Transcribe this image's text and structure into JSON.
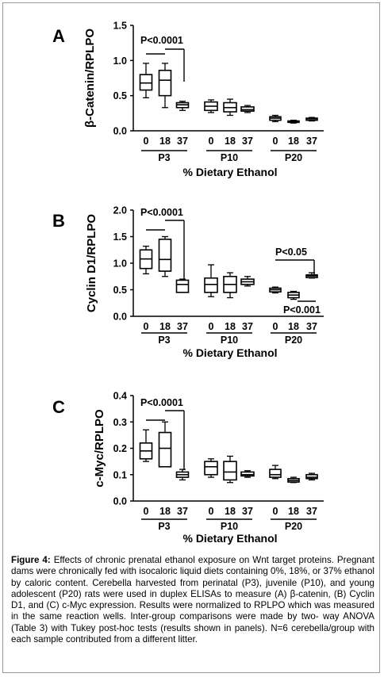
{
  "chart_data": [
    {
      "type": "box",
      "panel_label": "A",
      "ylabel": "β-Catenin/RPLPO",
      "ylim": [
        0,
        1.5
      ],
      "yticks": [
        "0.0",
        "0.5",
        "1.0",
        "1.5"
      ],
      "xlabel": "% Dietary Ethanol",
      "groups": [
        {
          "name": "P3",
          "doses": [
            "0",
            "18",
            "37"
          ],
          "boxes": [
            {
              "min": 0.47,
              "q1": 0.58,
              "median": 0.68,
              "q3": 0.8,
              "max": 0.96
            },
            {
              "min": 0.33,
              "q1": 0.5,
              "median": 0.72,
              "q3": 0.86,
              "max": 0.96
            },
            {
              "min": 0.29,
              "q1": 0.33,
              "median": 0.37,
              "q3": 0.4,
              "max": 0.42
            }
          ]
        },
        {
          "name": "P10",
          "doses": [
            "0",
            "18",
            "37"
          ],
          "boxes": [
            {
              "min": 0.26,
              "q1": 0.29,
              "median": 0.35,
              "q3": 0.41,
              "max": 0.44
            },
            {
              "min": 0.22,
              "q1": 0.27,
              "median": 0.33,
              "q3": 0.4,
              "max": 0.45
            },
            {
              "min": 0.26,
              "q1": 0.28,
              "median": 0.3,
              "q3": 0.34,
              "max": 0.36
            }
          ]
        },
        {
          "name": "P20",
          "doses": [
            "0",
            "18",
            "37"
          ],
          "boxes": [
            {
              "min": 0.13,
              "q1": 0.15,
              "median": 0.18,
              "q3": 0.2,
              "max": 0.22
            },
            {
              "min": 0.11,
              "q1": 0.12,
              "median": 0.13,
              "q3": 0.14,
              "max": 0.15
            },
            {
              "min": 0.14,
              "q1": 0.15,
              "median": 0.17,
              "q3": 0.18,
              "max": 0.19
            }
          ]
        }
      ],
      "annotations": [
        {
          "text": "P<0.0001",
          "compare": [
            "P3 0",
            "P3 18",
            "P3 37"
          ]
        }
      ]
    },
    {
      "type": "box",
      "panel_label": "B",
      "ylabel": "Cyclin D1/RPLPO",
      "ylim": [
        0,
        2.0
      ],
      "yticks": [
        "0.0",
        "0.5",
        "1.0",
        "1.5",
        "2.0"
      ],
      "xlabel": "% Dietary Ethanol",
      "groups": [
        {
          "name": "P3",
          "doses": [
            "0",
            "18",
            "37"
          ],
          "boxes": [
            {
              "min": 0.8,
              "q1": 0.9,
              "median": 1.08,
              "q3": 1.25,
              "max": 1.32
            },
            {
              "min": 0.75,
              "q1": 0.85,
              "median": 1.07,
              "q3": 1.45,
              "max": 1.5
            },
            {
              "min": 0.45,
              "q1": 0.45,
              "median": 0.6,
              "q3": 0.68,
              "max": 0.7
            }
          ]
        },
        {
          "name": "P10",
          "doses": [
            "0",
            "18",
            "37"
          ],
          "boxes": [
            {
              "min": 0.37,
              "q1": 0.45,
              "median": 0.6,
              "q3": 0.72,
              "max": 0.97
            },
            {
              "min": 0.35,
              "q1": 0.45,
              "median": 0.6,
              "q3": 0.75,
              "max": 0.82
            },
            {
              "min": 0.57,
              "q1": 0.6,
              "median": 0.65,
              "q3": 0.7,
              "max": 0.75
            }
          ]
        },
        {
          "name": "P20",
          "doses": [
            "0",
            "18",
            "37"
          ],
          "boxes": [
            {
              "min": 0.44,
              "q1": 0.46,
              "median": 0.5,
              "q3": 0.53,
              "max": 0.55
            },
            {
              "min": 0.32,
              "q1": 0.35,
              "median": 0.4,
              "q3": 0.45,
              "max": 0.47
            },
            {
              "min": 0.72,
              "q1": 0.73,
              "median": 0.76,
              "q3": 0.78,
              "max": 0.82
            }
          ]
        }
      ],
      "annotations": [
        {
          "text": "P<0.0001",
          "compare": [
            "P3 0",
            "P3 18",
            "P3 37"
          ]
        },
        {
          "text": "P<0.05",
          "compare": [
            "P20 0",
            "P20 37"
          ]
        },
        {
          "text": "P<0.001",
          "compare": [
            "P20 18",
            "P20 37"
          ]
        }
      ]
    },
    {
      "type": "box",
      "panel_label": "C",
      "ylabel": "c-Myc/RPLPO",
      "ylim": [
        0,
        0.4
      ],
      "yticks": [
        "0.0",
        "0.1",
        "0.2",
        "0.3",
        "0.4"
      ],
      "xlabel": "% Dietary Ethanol",
      "groups": [
        {
          "name": "P3",
          "doses": [
            "0",
            "18",
            "37"
          ],
          "boxes": [
            {
              "min": 0.15,
              "q1": 0.16,
              "median": 0.19,
              "q3": 0.22,
              "max": 0.27
            },
            {
              "min": 0.13,
              "q1": 0.13,
              "median": 0.2,
              "q3": 0.26,
              "max": 0.3
            },
            {
              "min": 0.08,
              "q1": 0.09,
              "median": 0.1,
              "q3": 0.11,
              "max": 0.12
            }
          ]
        },
        {
          "name": "P10",
          "doses": [
            "0",
            "18",
            "37"
          ],
          "boxes": [
            {
              "min": 0.09,
              "q1": 0.1,
              "median": 0.13,
              "q3": 0.15,
              "max": 0.16
            },
            {
              "min": 0.07,
              "q1": 0.08,
              "median": 0.11,
              "q3": 0.15,
              "max": 0.17
            },
            {
              "min": 0.09,
              "q1": 0.095,
              "median": 0.1,
              "q3": 0.11,
              "max": 0.115
            }
          ]
        },
        {
          "name": "P20",
          "doses": [
            "0",
            "18",
            "37"
          ],
          "boxes": [
            {
              "min": 0.085,
              "q1": 0.09,
              "median": 0.1,
              "q3": 0.12,
              "max": 0.135
            },
            {
              "min": 0.07,
              "q1": 0.072,
              "median": 0.078,
              "q3": 0.085,
              "max": 0.09
            },
            {
              "min": 0.08,
              "q1": 0.085,
              "median": 0.09,
              "q3": 0.1,
              "max": 0.105
            }
          ]
        }
      ],
      "annotations": [
        {
          "text": "P<0.0001",
          "compare": [
            "P3 0",
            "P3 18",
            "P3 37"
          ]
        }
      ]
    }
  ],
  "caption": {
    "label": "Figure 4:",
    "text": " Effects of chronic prenatal ethanol exposure on Wnt target proteins. Pregnant dams were chronically fed with isocaloric liquid diets containing 0%, 18%, or 37% ethanol by caloric content. Cerebella harvested from perinatal (P3), juvenile (P10), and young adolescent (P20) rats were used in duplex ELISAs to measure (A) β-catenin, (B) Cyclin D1, and (C) c-Myc expression. Results were normalized to RPLPO which was measured in the same reaction wells. Inter-group comparisons were made by two- way ANOVA (Table 3) with Tukey post-hoc tests (results shown in panels). N=6 cerebella/group with each sample contributed from a different litter."
  }
}
